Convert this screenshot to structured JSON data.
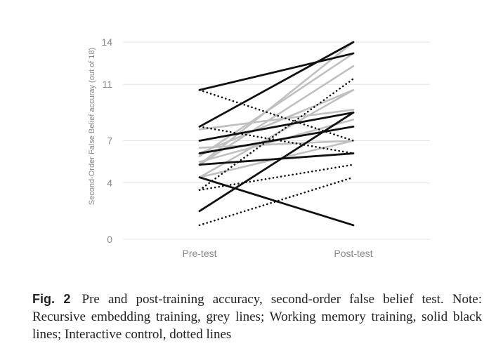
{
  "chart_data": {
    "type": "line",
    "categories": [
      "Pre-test",
      "Post-test"
    ],
    "ylabel": "Second-Order False Belief accuray (out of 18)",
    "yticks": [
      0,
      4,
      7,
      11,
      14
    ],
    "ylim": [
      0,
      14
    ],
    "grid": true,
    "series": [
      {
        "group": "grey",
        "values": [
          5.3,
          14
        ]
      },
      {
        "group": "grey",
        "values": [
          5.9,
          13.2
        ]
      },
      {
        "group": "grey",
        "values": [
          5.3,
          12.3
        ]
      },
      {
        "group": "grey",
        "values": [
          7.8,
          9.2
        ]
      },
      {
        "group": "grey",
        "values": [
          6.1,
          10.6
        ]
      },
      {
        "group": "grey",
        "values": [
          4.4,
          10.6
        ]
      },
      {
        "group": "grey",
        "values": [
          6.5,
          7.0
        ]
      },
      {
        "group": "grey",
        "values": [
          4.4,
          7.0
        ]
      },
      {
        "group": "grey",
        "values": [
          5.5,
          8.5
        ]
      },
      {
        "group": "solid",
        "values": [
          10.6,
          13.2
        ]
      },
      {
        "group": "solid",
        "values": [
          8.0,
          14.0
        ]
      },
      {
        "group": "solid",
        "values": [
          7.0,
          9.0
        ]
      },
      {
        "group": "solid",
        "values": [
          6.1,
          8.0
        ]
      },
      {
        "group": "solid",
        "values": [
          5.3,
          6.1
        ]
      },
      {
        "group": "solid",
        "values": [
          4.4,
          1.0
        ]
      },
      {
        "group": "solid",
        "values": [
          2.0,
          9.0
        ]
      },
      {
        "group": "dotted",
        "values": [
          10.6,
          7.0
        ]
      },
      {
        "group": "dotted",
        "values": [
          8.0,
          6.1
        ]
      },
      {
        "group": "dotted",
        "values": [
          3.5,
          11.4
        ]
      },
      {
        "group": "dotted",
        "values": [
          3.5,
          5.3
        ]
      },
      {
        "group": "dotted",
        "values": [
          1.0,
          4.4
        ]
      }
    ]
  },
  "caption": {
    "label": "Fig. 2",
    "text": "Pre and post-training accuracy, second-order false belief test. Note: Recursive embedding training, grey lines; Working memory training, solid black lines; Interactive control, dotted lines"
  },
  "colors": {
    "grey": "#c0c0c0",
    "solid": "#111111",
    "dotted": "#111111",
    "grid": "#e3e3e3",
    "tick": "#888888"
  }
}
